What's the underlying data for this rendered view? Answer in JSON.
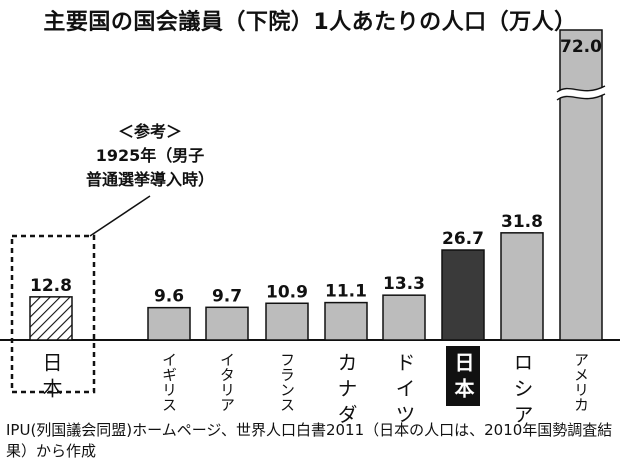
{
  "title": "主要国の国会議員（下院）1人あたりの人口（万人）",
  "chart_data": {
    "type": "bar",
    "title": "主要国の国会議員（下院）1人あたりの人口（万人）",
    "unit": "万人",
    "categories": [
      "日本",
      "イギリス",
      "イタリア",
      "フランス",
      "カナダ",
      "ドイツ",
      "日本",
      "ロシア",
      "アメリカ"
    ],
    "values": [
      12.8,
      9.6,
      9.7,
      10.9,
      11.1,
      13.3,
      26.7,
      31.8,
      72.0
    ],
    "value_labels": [
      "12.8",
      "9.6",
      "9.7",
      "10.9",
      "11.1",
      "13.3",
      "26.7",
      "31.8",
      "72.0"
    ],
    "styles": [
      "hatched",
      "gray",
      "gray",
      "gray",
      "gray",
      "gray",
      "dark",
      "gray",
      "gray"
    ],
    "broken_axis_bar": 8,
    "ylim": [
      0,
      40
    ],
    "grid": false,
    "colors": {
      "gray": "#bcbcbc",
      "dark": "#3a3a3a",
      "outline": "#111111",
      "highlight_text": "#ffffff"
    }
  },
  "reference_note": {
    "line1": "＜参考＞",
    "line2": "1925年（男子",
    "line3": "普通選挙導入時）"
  },
  "source_text": "IPU(列国議会同盟)ホームページ、世界人口白書2011（日本の人口は、2010年国勢調査結果）から作成"
}
